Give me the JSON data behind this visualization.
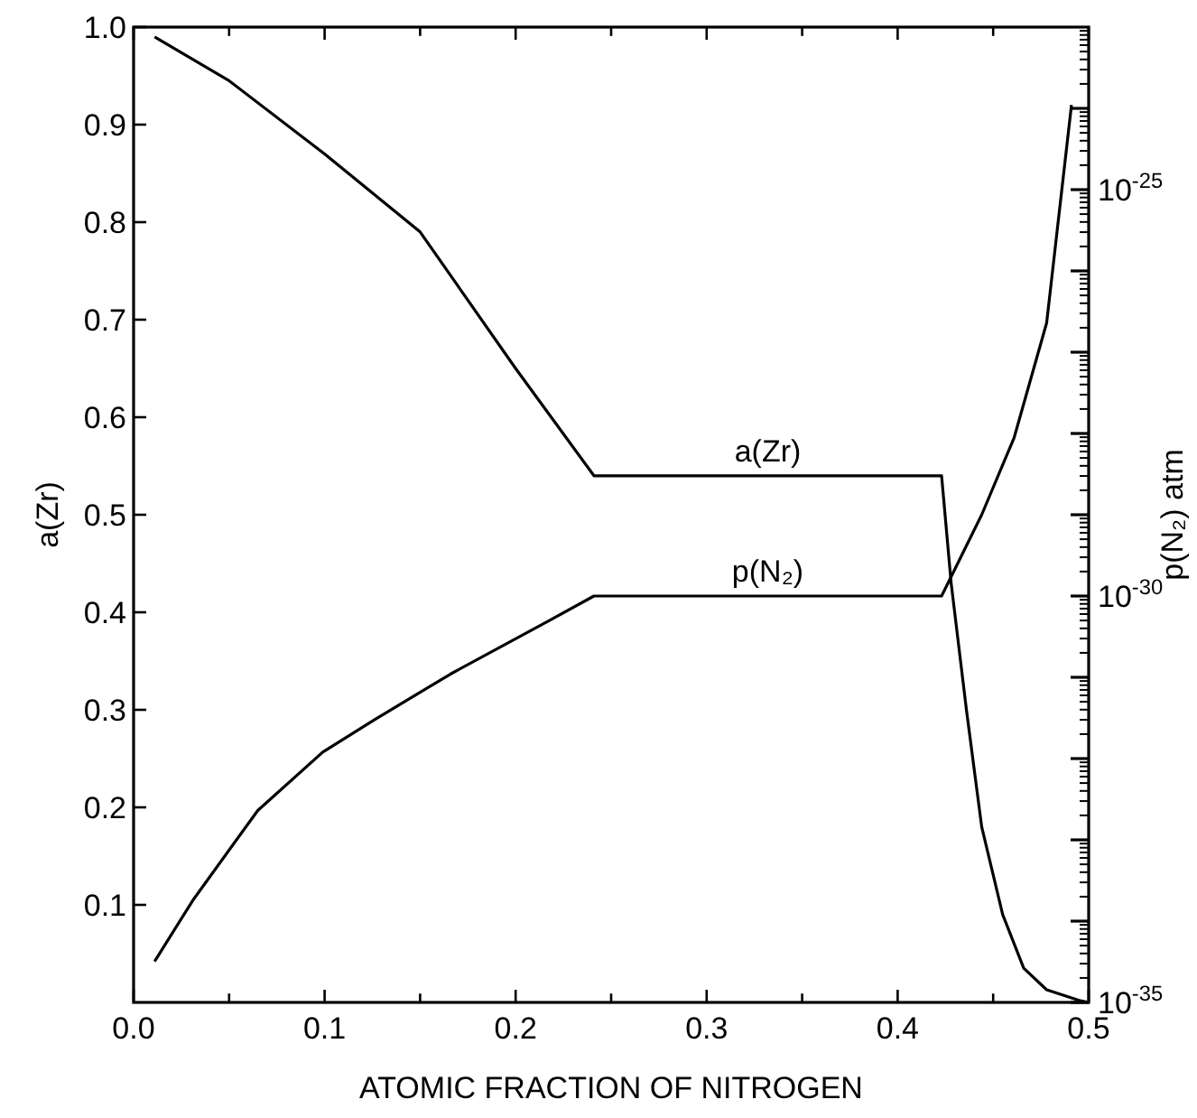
{
  "chart_data": {
    "type": "line",
    "xlabel": "ATOMIC FRACTION OF NITROGEN",
    "ylabel": "a(Zr)",
    "y2label": "p(N₂) atm",
    "xlim": [
      0,
      0.5
    ],
    "xticks": [
      {
        "value": 0,
        "label": "0.0"
      },
      {
        "value": 0.05,
        "label": null
      },
      0.1,
      {
        "value": 0.15,
        "label": null
      },
      0.2,
      {
        "value": 0.25,
        "label": null
      },
      0.3,
      {
        "value": 0.35,
        "label": null
      },
      0.4,
      {
        "value": 0.45,
        "label": null
      },
      0.5
    ],
    "ylim": [
      0,
      1
    ],
    "yticks": [
      0.1,
      0.2,
      0.3,
      0.4,
      0.5,
      0.6,
      0.7,
      0.8,
      0.9,
      {
        "value": 1,
        "label": "1.0"
      }
    ],
    "y2lim": [
      1e-35,
      1e-23
    ],
    "y2ticks": [
      {
        "value": 1e-35,
        "label": "10$^{-35}$"
      },
      {
        "value": 1e-34,
        "label": null
      },
      {
        "value": 1e-33,
        "label": null
      },
      {
        "value": 1e-32,
        "label": null
      },
      {
        "value": 1e-31,
        "label": null
      },
      {
        "value": 1e-30,
        "label": "10$^{-30}$"
      },
      {
        "value": 1e-29,
        "label": null
      },
      {
        "value": 1e-28,
        "label": null
      },
      {
        "value": 1e-27,
        "label": null
      },
      {
        "value": 1e-26,
        "label": null
      },
      {
        "value": 1e-25,
        "label": "10$^{-25}$"
      },
      {
        "value": 1e-24,
        "label": null
      }
    ],
    "log": "y2",
    "grid": false,
    "legend": false,
    "marker": "none",
    "line_style": "solid",
    "series": [
      {
        "name": "a(Zr)",
        "color": "#000000",
        "x": [
          0.011,
          0.05,
          0.1,
          0.15,
          0.2,
          0.241,
          0.423,
          0.428,
          0.436,
          0.444,
          0.455,
          0.466,
          0.478,
          0.495,
          0.5
        ],
        "values": [
          0.99,
          0.945,
          0.87,
          0.79,
          0.65,
          0.54,
          0.54,
          0.43,
          0.3,
          0.18,
          0.09,
          0.035,
          0.013,
          0.002,
          0
        ]
      },
      {
        "name": "p(N₂)",
        "color": "#000000",
        "axis": "y2",
        "x": [
          0.011,
          0.031,
          0.065,
          0.099,
          0.126,
          0.166,
          0.217,
          0.241,
          0.423,
          0.431,
          0.444,
          0.461,
          0.478,
          0.491
        ],
        "values": [
          3.2e-35,
          1.8e-34,
          2.3e-33,
          1.2e-32,
          3e-32,
          1.1e-31,
          4.9e-31,
          1e-30,
          1e-30,
          2.4e-30,
          1e-29,
          8.9e-29,
          2.3e-27,
          1.1e-24
        ]
      }
    ]
  }
}
